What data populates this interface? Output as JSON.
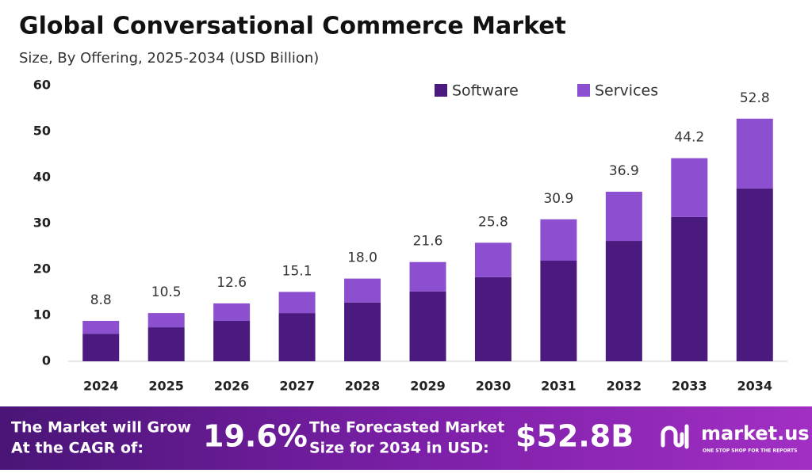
{
  "chart_data": {
    "type": "stacked_bar",
    "title": "Global Conversational Commerce Market",
    "subtitle": "Size, By Offering, 2025-2034 (USD Billion)",
    "categories": [
      "2024",
      "2025",
      "2026",
      "2027",
      "2028",
      "2029",
      "2030",
      "2031",
      "2032",
      "2033",
      "2034"
    ],
    "series": [
      {
        "name": "Software",
        "color": "#4a1a7e",
        "values": [
          6.0,
          7.4,
          8.8,
          10.5,
          12.8,
          15.2,
          18.3,
          21.9,
          26.2,
          31.4,
          37.6
        ]
      },
      {
        "name": "Services",
        "color": "#8c4fd0",
        "values": [
          2.8,
          3.1,
          3.8,
          4.6,
          5.2,
          6.4,
          7.5,
          9.0,
          10.7,
          12.8,
          15.2
        ]
      }
    ],
    "totals": [
      8.8,
      10.5,
      12.6,
      15.1,
      "18.0",
      21.6,
      25.8,
      30.9,
      36.9,
      44.2,
      52.8
    ],
    "ylim": [
      0,
      60
    ],
    "yticks": [
      0,
      10,
      20,
      30,
      40,
      50,
      60
    ],
    "grid": false,
    "legend": "top"
  },
  "footer": {
    "cagr_text": [
      "The Market will Grow",
      "At the CAGR of:"
    ],
    "cagr_value": "19.6%",
    "forecast_text": [
      "The Forecasted Market",
      "Size for 2034 in USD:"
    ],
    "forecast_value": "$52.8B",
    "brand": "market.us",
    "tagline": "ONE STOP SHOP FOR THE REPORTS"
  }
}
